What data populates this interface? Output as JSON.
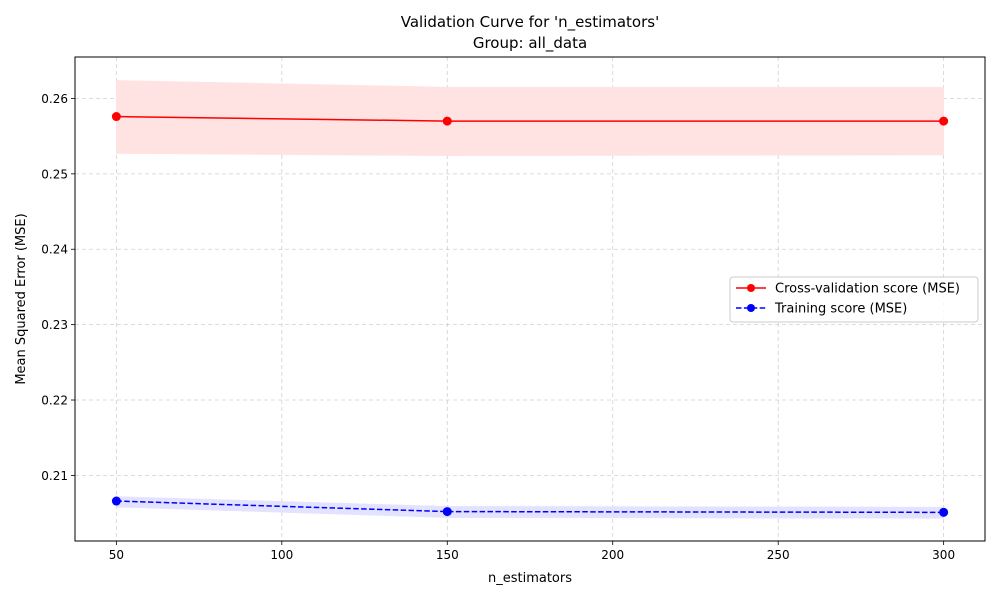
{
  "chart_data": {
    "type": "line",
    "title_line1": "Validation Curve for 'n_estimators'",
    "title_line2": "Group: all_data",
    "xlabel": "n_estimators",
    "ylabel": "Mean Squared Error (MSE)",
    "x": [
      50,
      150,
      300
    ],
    "xlim": [
      37.5,
      312.5
    ],
    "ylim": [
      0.2013,
      0.2655
    ],
    "x_ticks": [
      50,
      100,
      150,
      200,
      250,
      300
    ],
    "y_ticks": [
      0.21,
      0.22,
      0.23,
      0.24,
      0.25,
      0.26
    ],
    "grid": true,
    "legend_position": "center-right",
    "series": [
      {
        "name": "Cross-validation score (MSE)",
        "color": "#ff0000",
        "style": "solid",
        "marker": "circle",
        "values": [
          0.2576,
          0.257,
          0.257
        ],
        "band_upper": [
          0.2624,
          0.2615,
          0.2615
        ],
        "band_lower": [
          0.2527,
          0.2524,
          0.2525
        ],
        "band_color": "#ffe3e3"
      },
      {
        "name": "Training score (MSE)",
        "color": "#0000ff",
        "style": "dashed",
        "marker": "circle",
        "values": [
          0.2066,
          0.2052,
          0.2051
        ],
        "band_upper": [
          0.2072,
          0.2059,
          0.2058
        ],
        "band_lower": [
          0.2058,
          0.2044,
          0.2043
        ],
        "band_color": "#e3e3ff"
      }
    ]
  }
}
